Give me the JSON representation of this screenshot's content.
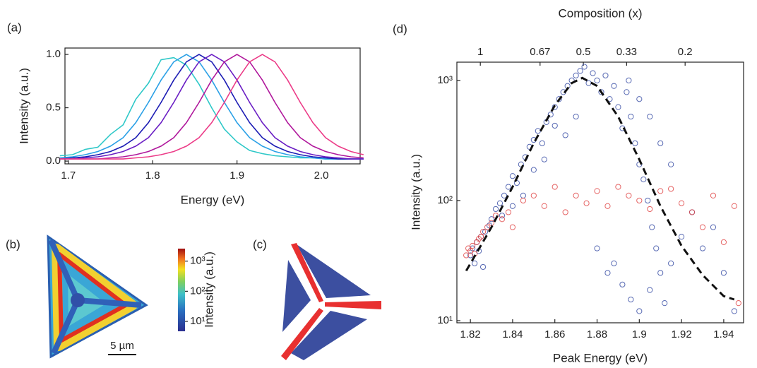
{
  "chart_data": [
    {
      "type": "line",
      "label": "(a)",
      "xlabel": "Energy (eV)",
      "ylabel": "Intensity (a.u.)",
      "x": [
        1.69,
        1.705,
        1.72,
        1.735,
        1.75,
        1.765,
        1.78,
        1.795,
        1.81,
        1.825,
        1.84,
        1.855,
        1.87,
        1.885,
        1.9,
        1.915,
        1.93,
        1.945,
        1.96,
        1.975,
        1.99,
        2.005,
        2.02,
        2.035,
        2.05
      ],
      "xlim": [
        1.696,
        2.046
      ],
      "ylim": [
        -0.026,
        1.06
      ],
      "xticks": [
        1.7,
        1.8,
        1.9,
        {
          "value": 2,
          "label": "2.0"
        }
      ],
      "yticks": [
        {
          "value": 0,
          "label": "0.0"
        },
        0.5,
        {
          "value": 1,
          "label": "1.0"
        }
      ],
      "series": [
        {
          "color": "#2ec8c8",
          "values": [
            0.05,
            0.06,
            0.11,
            0.13,
            0.25,
            0.34,
            0.58,
            0.73,
            0.95,
            0.97,
            0.9,
            0.72,
            0.5,
            0.3,
            0.18,
            0.1,
            0.07,
            0.05,
            0.04,
            0.03,
            0.03,
            0.02,
            0.02,
            0.02,
            0.02
          ]
        },
        {
          "color": "#2aa0e6",
          "values": [
            0.03,
            0.04,
            0.06,
            0.09,
            0.14,
            0.22,
            0.36,
            0.55,
            0.76,
            0.93,
            1,
            0.93,
            0.76,
            0.55,
            0.36,
            0.22,
            0.14,
            0.09,
            0.06,
            0.04,
            0.03,
            0.02,
            0.02,
            0.02,
            0.02
          ]
        },
        {
          "color": "#1c1cb4",
          "values": [
            0.02,
            0.03,
            0.04,
            0.06,
            0.09,
            0.14,
            0.22,
            0.36,
            0.55,
            0.76,
            0.93,
            1,
            0.93,
            0.76,
            0.55,
            0.36,
            0.22,
            0.14,
            0.09,
            0.06,
            0.04,
            0.03,
            0.02,
            0.02,
            0.02
          ]
        },
        {
          "color": "#6a1ec4",
          "values": [
            0.02,
            0.02,
            0.03,
            0.04,
            0.06,
            0.09,
            0.14,
            0.22,
            0.36,
            0.55,
            0.76,
            0.93,
            1,
            0.93,
            0.76,
            0.55,
            0.36,
            0.22,
            0.14,
            0.09,
            0.06,
            0.04,
            0.03,
            0.02,
            0.02
          ]
        },
        {
          "color": "#b0189c",
          "values": [
            0.02,
            0.02,
            0.02,
            0.02,
            0.03,
            0.04,
            0.06,
            0.09,
            0.14,
            0.22,
            0.36,
            0.55,
            0.76,
            0.93,
            1,
            0.93,
            0.76,
            0.55,
            0.36,
            0.22,
            0.14,
            0.09,
            0.06,
            0.04,
            0.03
          ]
        },
        {
          "color": "#ec3c88",
          "values": [
            0.02,
            0.02,
            0.02,
            0.02,
            0.02,
            0.02,
            0.03,
            0.04,
            0.06,
            0.09,
            0.14,
            0.22,
            0.36,
            0.55,
            0.76,
            0.93,
            1,
            0.93,
            0.76,
            0.55,
            0.36,
            0.22,
            0.14,
            0.09,
            0.06
          ]
        }
      ]
    },
    {
      "type": "colorbar",
      "label": "(b)",
      "ylabel": "Intensity (a.u.)",
      "scalebar": "5 µm",
      "log": true,
      "ylim": [
        4.7,
        2600
      ],
      "yticks": [
        {
          "value": 10,
          "label": "10¹"
        },
        {
          "value": 100,
          "label": "10²"
        },
        {
          "value": 1000,
          "label": "10³"
        }
      ]
    },
    {
      "type": "image",
      "label": "(c)"
    },
    {
      "type": "scatter",
      "label": "(d)",
      "xlabel": "Peak Energy (eV)",
      "ylabel": "Intensity (a.u.)",
      "x2label": "Composition (x)",
      "log": true,
      "xlim": [
        1.8136,
        1.9494
      ],
      "ylim": [
        9.6,
        1420
      ],
      "xticks": [
        1.82,
        1.84,
        1.86,
        1.88,
        1.9,
        1.92,
        1.94
      ],
      "yticks": [
        {
          "value": 10,
          "label": "10¹"
        },
        {
          "value": 100,
          "label": "10²"
        },
        {
          "value": 1000,
          "label": "10³"
        }
      ],
      "x2ticks": [
        {
          "value": 1.8247,
          "label": "1"
        },
        {
          "value": 1.853,
          "label": "0.67"
        },
        {
          "value": 1.8735,
          "label": "0.5"
        },
        {
          "value": 1.894,
          "label": "0.33"
        },
        {
          "value": 1.9217,
          "label": "0.2"
        }
      ],
      "series": [
        {
          "color": "#3a4fa6",
          "style": "circles",
          "x": [
            1.82,
            1.821,
            1.822,
            1.823,
            1.824,
            1.825,
            1.826,
            1.827,
            1.829,
            1.83,
            1.832,
            1.834,
            1.836,
            1.838,
            1.84,
            1.842,
            1.844,
            1.846,
            1.848,
            1.85,
            1.852,
            1.854,
            1.856,
            1.858,
            1.86,
            1.862,
            1.864,
            1.866,
            1.868,
            1.87,
            1.872,
            1.874,
            1.876,
            1.878,
            1.88,
            1.882,
            1.884,
            1.886,
            1.888,
            1.89,
            1.892,
            1.894,
            1.896,
            1.898,
            1.9,
            1.902,
            1.904,
            1.906,
            1.908,
            1.91,
            1.888,
            1.892,
            1.896,
            1.9,
            1.905,
            1.912,
            1.915,
            1.92,
            1.925,
            1.93,
            1.935,
            1.94,
            1.945,
            1.895,
            1.9,
            1.905,
            1.91,
            1.915,
            1.88,
            1.885,
            1.87,
            1.865,
            1.86,
            1.855,
            1.85,
            1.845,
            1.84,
            1.835
          ],
          "values": [
            35,
            40,
            30,
            45,
            38,
            50,
            28,
            55,
            62,
            70,
            85,
            95,
            110,
            130,
            160,
            140,
            200,
            230,
            280,
            320,
            380,
            300,
            450,
            520,
            600,
            700,
            800,
            900,
            1000,
            1100,
            1200,
            1300,
            950,
            1150,
            1000,
            800,
            1100,
            700,
            900,
            600,
            400,
            800,
            500,
            300,
            200,
            150,
            100,
            60,
            40,
            25,
            30,
            20,
            15,
            12,
            18,
            14,
            30,
            50,
            80,
            40,
            60,
            25,
            12,
            1000,
            700,
            500,
            300,
            200,
            40,
            25,
            500,
            350,
            420,
            220,
            180,
            110,
            90,
            75
          ]
        },
        {
          "color": "#e04848",
          "style": "circles",
          "x": [
            1.818,
            1.819,
            1.82,
            1.821,
            1.822,
            1.823,
            1.824,
            1.825,
            1.826,
            1.828,
            1.83,
            1.832,
            1.835,
            1.838,
            1.84,
            1.845,
            1.85,
            1.855,
            1.86,
            1.865,
            1.87,
            1.875,
            1.88,
            1.885,
            1.89,
            1.895,
            1.9,
            1.905,
            1.91,
            1.915,
            1.92,
            1.925,
            1.93,
            1.935,
            1.94,
            1.945,
            1.947
          ],
          "values": [
            35,
            40,
            38,
            42,
            36,
            45,
            48,
            50,
            55,
            60,
            65,
            75,
            70,
            80,
            60,
            100,
            110,
            90,
            130,
            80,
            110,
            95,
            120,
            90,
            130,
            110,
            100,
            85,
            120,
            125,
            95,
            80,
            60,
            110,
            45,
            90,
            14
          ]
        },
        {
          "color": "#111111",
          "style": "dashed",
          "x": [
            1.818,
            1.83,
            1.84,
            1.85,
            1.86,
            1.868,
            1.873,
            1.88,
            1.89,
            1.9,
            1.91,
            1.92,
            1.93,
            1.94,
            1.945
          ],
          "values": [
            26,
            60,
            130,
            300,
            620,
            950,
            1050,
            900,
            500,
            220,
            90,
            42,
            24,
            16,
            15
          ]
        }
      ]
    }
  ]
}
